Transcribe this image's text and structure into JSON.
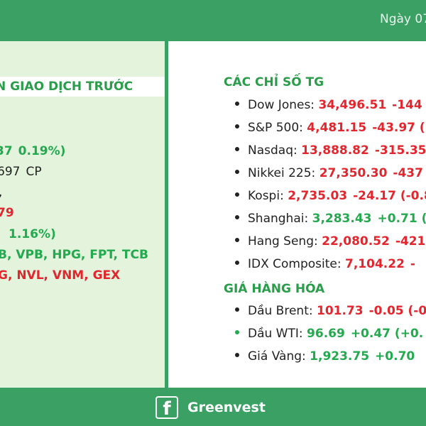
{
  "header": {
    "date": "Ngày 07"
  },
  "left": {
    "section_title": "N GIAO DỊCH TRƯỚC",
    "row1": {
      "a": "37",
      "b": "0.19%)"
    },
    "row2": {
      "a": "697",
      "b": "CP"
    },
    "row3": ",",
    "row4": "79",
    "row5": "1.16%)",
    "row6": "B, VPB, HPG, FPT, TCB",
    "row7": "G, NVL, VNM, GEX"
  },
  "indices": {
    "title": "CÁC CHỈ SỐ TG",
    "items": [
      {
        "name": "Dow Jones:",
        "value": "34,496.51",
        "change": "-144",
        "color": "red"
      },
      {
        "name": "S&P 500:",
        "value": "4,481.15",
        "change": "-43.97 (",
        "color": "red"
      },
      {
        "name": "Nasdaq:",
        "value": "13,888.82",
        "change": "-315.35",
        "color": "red"
      },
      {
        "name": "Nikkei 225:",
        "value": "27,350.30",
        "change": "-437",
        "color": "red"
      },
      {
        "name": "Kospi:",
        "value": "2,735.03",
        "change": "-24.17 (-0.8",
        "color": "red"
      },
      {
        "name": "Shanghai:",
        "value": "3,283.43",
        "change": "+0.71 (",
        "color": "green"
      },
      {
        "name": "Hang Seng:",
        "value": "22,080.52",
        "change": "-421",
        "color": "red"
      },
      {
        "name": "IDX Composite:",
        "value": "7,104.22",
        "change": "-",
        "color": "red"
      }
    ]
  },
  "commodities": {
    "title": "GIÁ HÀNG HÓA",
    "items": [
      {
        "name": "Dầu Brent:",
        "value": "101.73",
        "change": "-0.05 (-0",
        "color": "red"
      },
      {
        "name": "Dầu WTI:",
        "value": "96.69",
        "change": "+0.47 (+0.",
        "color": "green"
      },
      {
        "name": "Giá Vàng:",
        "value": "1,923.75",
        "change": "+0.70",
        "color": "green"
      }
    ]
  },
  "footer": {
    "brand": "Greenvest",
    "icon": "facebook-icon"
  },
  "colors": {
    "green_bg": "#3aa063",
    "up": "#23a94e",
    "down": "#e3262e"
  }
}
